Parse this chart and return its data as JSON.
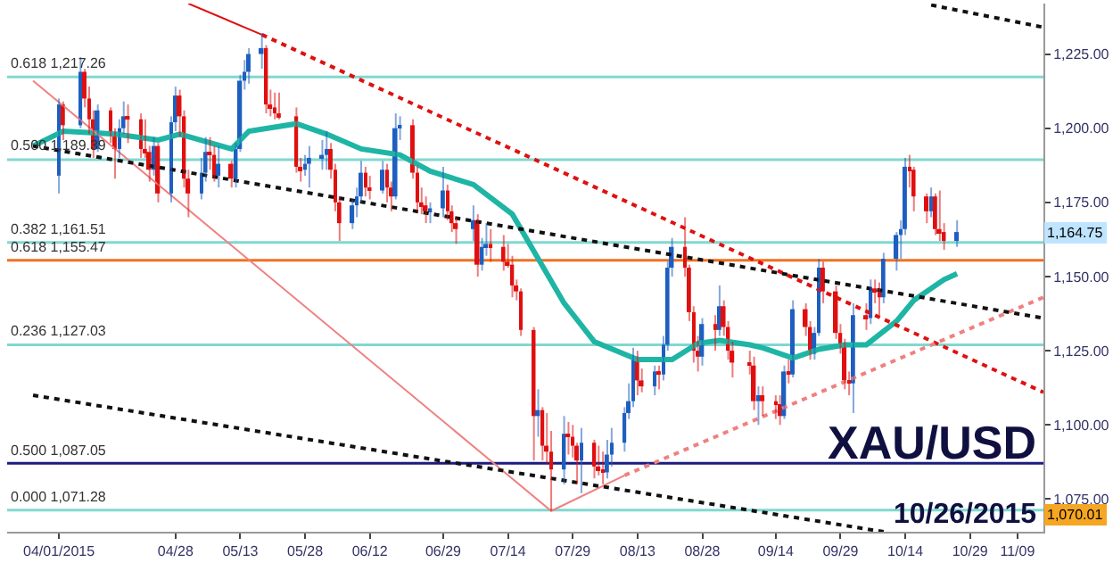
{
  "chart_data": {
    "type": "candlestick",
    "x": [
      "2015-04-01",
      "2015-04-02",
      "2015-04-06",
      "2015-04-07",
      "2015-04-08",
      "2015-04-09",
      "2015-04-10",
      "2015-04-13",
      "2015-04-14",
      "2015-04-15",
      "2015-04-16",
      "2015-04-17",
      "2015-04-20",
      "2015-04-21",
      "2015-04-22",
      "2015-04-23",
      "2015-04-24",
      "2015-04-27",
      "2015-04-28",
      "2015-04-29",
      "2015-04-30",
      "2015-05-01",
      "2015-05-04",
      "2015-05-05",
      "2015-05-06",
      "2015-05-07",
      "2015-05-08",
      "2015-05-11",
      "2015-05-12",
      "2015-05-13",
      "2015-05-14",
      "2015-05-15",
      "2015-05-18",
      "2015-05-19",
      "2015-05-20",
      "2015-05-21",
      "2015-05-22",
      "2015-05-26",
      "2015-05-27",
      "2015-05-28",
      "2015-05-29",
      "2015-06-01",
      "2015-06-02",
      "2015-06-03",
      "2015-06-04",
      "2015-06-05",
      "2015-06-08",
      "2015-06-09",
      "2015-06-10",
      "2015-06-11",
      "2015-06-12",
      "2015-06-15",
      "2015-06-16",
      "2015-06-17",
      "2015-06-18",
      "2015-06-19",
      "2015-06-22",
      "2015-06-23",
      "2015-06-24",
      "2015-06-25",
      "2015-06-26",
      "2015-06-29",
      "2015-06-30",
      "2015-07-01",
      "2015-07-02",
      "2015-07-06",
      "2015-07-07",
      "2015-07-08",
      "2015-07-09",
      "2015-07-10",
      "2015-07-13",
      "2015-07-14",
      "2015-07-15",
      "2015-07-16",
      "2015-07-17",
      "2015-07-20",
      "2015-07-21",
      "2015-07-22",
      "2015-07-23",
      "2015-07-24",
      "2015-07-27",
      "2015-07-28",
      "2015-07-29",
      "2015-07-30",
      "2015-07-31",
      "2015-08-03",
      "2015-08-04",
      "2015-08-05",
      "2015-08-06",
      "2015-08-07",
      "2015-08-10",
      "2015-08-11",
      "2015-08-12",
      "2015-08-13",
      "2015-08-14",
      "2015-08-17",
      "2015-08-18",
      "2015-08-19",
      "2015-08-20",
      "2015-08-21",
      "2015-08-24",
      "2015-08-25",
      "2015-08-26",
      "2015-08-27",
      "2015-08-28",
      "2015-08-31",
      "2015-09-01",
      "2015-09-02",
      "2015-09-03",
      "2015-09-04",
      "2015-09-08",
      "2015-09-09",
      "2015-09-10",
      "2015-09-11",
      "2015-09-14",
      "2015-09-15",
      "2015-09-16",
      "2015-09-17",
      "2015-09-18",
      "2015-09-21",
      "2015-09-22",
      "2015-09-23",
      "2015-09-24",
      "2015-09-25",
      "2015-09-28",
      "2015-09-29",
      "2015-09-30",
      "2015-10-01",
      "2015-10-02",
      "2015-10-05",
      "2015-10-06",
      "2015-10-07",
      "2015-10-08",
      "2015-10-09",
      "2015-10-12",
      "2015-10-13",
      "2015-10-14",
      "2015-10-15",
      "2015-10-16",
      "2015-10-19",
      "2015-10-20",
      "2015-10-21",
      "2015-10-22",
      "2015-10-23",
      "2015-10-26"
    ],
    "ohlc": [
      [
        1184,
        1210,
        1178,
        1208
      ],
      [
        1208,
        1209,
        1196,
        1201
      ],
      [
        1201,
        1224,
        1200,
        1219
      ],
      [
        1219,
        1220,
        1207,
        1210
      ],
      [
        1210,
        1214,
        1198,
        1203
      ],
      [
        1203,
        1206,
        1190,
        1193
      ],
      [
        1193,
        1208,
        1192,
        1206
      ],
      [
        1206,
        1207,
        1195,
        1198
      ],
      [
        1198,
        1200,
        1183,
        1193
      ],
      [
        1193,
        1203,
        1190,
        1200
      ],
      [
        1200,
        1209,
        1198,
        1204
      ],
      [
        1204,
        1208,
        1195,
        1203
      ],
      [
        1203,
        1205,
        1190,
        1193
      ],
      [
        1193,
        1203,
        1190,
        1192
      ],
      [
        1192,
        1194,
        1182,
        1186
      ],
      [
        1186,
        1197,
        1184,
        1194
      ],
      [
        1194,
        1195,
        1175,
        1178
      ],
      [
        1178,
        1204,
        1175,
        1202
      ],
      [
        1202,
        1214,
        1199,
        1211
      ],
      [
        1211,
        1213,
        1197,
        1204
      ],
      [
        1204,
        1206,
        1180,
        1183
      ],
      [
        1183,
        1186,
        1170,
        1178
      ],
      [
        1178,
        1190,
        1176,
        1185
      ],
      [
        1185,
        1197,
        1182,
        1192
      ],
      [
        1192,
        1197,
        1186,
        1191
      ],
      [
        1191,
        1194,
        1182,
        1184
      ],
      [
        1184,
        1194,
        1180,
        1188
      ],
      [
        1188,
        1189,
        1180,
        1183
      ],
      [
        1183,
        1195,
        1180,
        1193
      ],
      [
        1193,
        1218,
        1192,
        1216
      ],
      [
        1216,
        1223,
        1213,
        1219
      ],
      [
        1219,
        1227,
        1215,
        1225
      ],
      [
        1225,
        1232,
        1220,
        1227
      ],
      [
        1227,
        1228,
        1205,
        1208
      ],
      [
        1208,
        1213,
        1204,
        1207
      ],
      [
        1207,
        1212,
        1203,
        1205
      ],
      [
        1205,
        1212,
        1203,
        1204
      ],
      [
        1204,
        1207,
        1185,
        1187
      ],
      [
        1187,
        1190,
        1182,
        1186
      ],
      [
        1186,
        1191,
        1184,
        1188
      ],
      [
        1188,
        1194,
        1180,
        1190
      ],
      [
        1190,
        1196,
        1186,
        1191
      ],
      [
        1191,
        1199,
        1186,
        1193
      ],
      [
        1193,
        1195,
        1183,
        1186
      ],
      [
        1186,
        1188,
        1172,
        1175
      ],
      [
        1175,
        1177,
        1162,
        1168
      ],
      [
        1168,
        1176,
        1166,
        1174
      ],
      [
        1174,
        1180,
        1170,
        1177
      ],
      [
        1177,
        1189,
        1175,
        1185
      ],
      [
        1185,
        1187,
        1177,
        1180
      ],
      [
        1180,
        1184,
        1176,
        1179
      ],
      [
        1179,
        1189,
        1178,
        1186
      ],
      [
        1186,
        1188,
        1175,
        1180
      ],
      [
        1180,
        1182,
        1172,
        1177
      ],
      [
        1177,
        1205,
        1176,
        1200
      ],
      [
        1200,
        1204,
        1196,
        1201
      ],
      [
        1201,
        1203,
        1183,
        1185
      ],
      [
        1185,
        1187,
        1172,
        1175
      ],
      [
        1175,
        1180,
        1171,
        1174
      ],
      [
        1174,
        1177,
        1168,
        1172
      ],
      [
        1172,
        1175,
        1168,
        1173
      ],
      [
        1173,
        1187,
        1170,
        1179
      ],
      [
        1179,
        1181,
        1169,
        1172
      ],
      [
        1172,
        1174,
        1165,
        1168
      ],
      [
        1168,
        1170,
        1161,
        1166
      ],
      [
        1166,
        1174,
        1162,
        1169
      ],
      [
        1169,
        1171,
        1150,
        1154
      ],
      [
        1154,
        1163,
        1152,
        1160
      ],
      [
        1160,
        1168,
        1157,
        1161
      ],
      [
        1161,
        1166,
        1155,
        1160
      ],
      [
        1160,
        1164,
        1152,
        1155
      ],
      [
        1155,
        1161,
        1153,
        1154
      ],
      [
        1154,
        1157,
        1143,
        1147
      ],
      [
        1147,
        1149,
        1142,
        1145
      ],
      [
        1145,
        1146,
        1130,
        1132
      ],
      [
        1132,
        1133,
        1088,
        1103
      ],
      [
        1103,
        1112,
        1096,
        1105
      ],
      [
        1105,
        1106,
        1088,
        1093
      ],
      [
        1093,
        1104,
        1087,
        1091
      ],
      [
        1091,
        1098,
        1071,
        1085
      ],
      [
        1085,
        1103,
        1080,
        1097
      ],
      [
        1097,
        1101,
        1090,
        1096
      ],
      [
        1096,
        1100,
        1089,
        1093
      ],
      [
        1093,
        1094,
        1080,
        1088
      ],
      [
        1088,
        1099,
        1077,
        1094
      ],
      [
        1094,
        1095,
        1082,
        1086
      ],
      [
        1086,
        1093,
        1083,
        1085
      ],
      [
        1085,
        1091,
        1080,
        1084
      ],
      [
        1084,
        1095,
        1082,
        1090
      ],
      [
        1090,
        1099,
        1086,
        1094
      ],
      [
        1094,
        1106,
        1091,
        1104
      ],
      [
        1104,
        1114,
        1102,
        1108
      ],
      [
        1108,
        1126,
        1106,
        1123
      ],
      [
        1123,
        1125,
        1110,
        1115
      ],
      [
        1115,
        1119,
        1111,
        1113
      ],
      [
        1113,
        1120,
        1110,
        1118
      ],
      [
        1118,
        1120,
        1112,
        1117
      ],
      [
        1117,
        1130,
        1115,
        1127
      ],
      [
        1127,
        1155,
        1125,
        1153
      ],
      [
        1153,
        1163,
        1150,
        1160
      ],
      [
        1160,
        1170,
        1150,
        1153
      ],
      [
        1153,
        1154,
        1135,
        1138
      ],
      [
        1138,
        1140,
        1121,
        1125
      ],
      [
        1125,
        1130,
        1118,
        1123
      ],
      [
        1123,
        1136,
        1120,
        1134
      ],
      [
        1134,
        1137,
        1125,
        1132
      ],
      [
        1132,
        1147,
        1130,
        1140
      ],
      [
        1140,
        1142,
        1130,
        1133
      ],
      [
        1133,
        1135,
        1122,
        1125
      ],
      [
        1125,
        1128,
        1116,
        1121
      ],
      [
        1121,
        1125,
        1117,
        1120
      ],
      [
        1120,
        1123,
        1105,
        1108
      ],
      [
        1108,
        1113,
        1100,
        1110
      ],
      [
        1110,
        1113,
        1103,
        1108
      ],
      [
        1108,
        1110,
        1102,
        1107
      ],
      [
        1107,
        1110,
        1100,
        1103
      ],
      [
        1103,
        1120,
        1102,
        1118
      ],
      [
        1118,
        1122,
        1114,
        1117
      ],
      [
        1117,
        1142,
        1116,
        1139
      ],
      [
        1139,
        1141,
        1130,
        1133
      ],
      [
        1133,
        1135,
        1122,
        1124
      ],
      [
        1124,
        1133,
        1122,
        1131
      ],
      [
        1131,
        1156,
        1130,
        1153
      ],
      [
        1153,
        1155,
        1141,
        1145
      ],
      [
        1145,
        1147,
        1129,
        1131
      ],
      [
        1131,
        1134,
        1124,
        1127
      ],
      [
        1127,
        1129,
        1112,
        1115
      ],
      [
        1115,
        1118,
        1110,
        1114
      ],
      [
        1114,
        1141,
        1104,
        1137
      ],
      [
        1137,
        1141,
        1132,
        1136
      ],
      [
        1136,
        1149,
        1134,
        1146
      ],
      [
        1146,
        1149,
        1141,
        1145
      ],
      [
        1145,
        1148,
        1137,
        1143
      ],
      [
        1143,
        1158,
        1141,
        1156
      ],
      [
        1156,
        1165,
        1152,
        1164
      ],
      [
        1164,
        1169,
        1156,
        1166
      ],
      [
        1166,
        1190,
        1164,
        1187
      ],
      [
        1187,
        1191,
        1180,
        1186
      ],
      [
        1186,
        1187,
        1172,
        1177
      ],
      [
        1177,
        1178,
        1168,
        1172
      ],
      [
        1172,
        1180,
        1170,
        1177
      ],
      [
        1177,
        1178,
        1164,
        1166
      ],
      [
        1166,
        1179,
        1162,
        1165
      ],
      [
        1165,
        1168,
        1159,
        1162
      ],
      [
        1162,
        1169,
        1160,
        1165
      ]
    ],
    "colors": [
      "#1e5fc0",
      "#e01010",
      "#1e5fc0",
      "#e01010",
      "#e01010",
      "#e01010",
      "#1e5fc0",
      "#e01010",
      "#e01010",
      "#1e5fc0",
      "#1e5fc0",
      "#e01010",
      "#e01010",
      "#e01010",
      "#e01010",
      "#1e5fc0",
      "#e01010",
      "#1e5fc0",
      "#1e5fc0",
      "#e01010",
      "#e01010",
      "#e01010",
      "#1e5fc0",
      "#1e5fc0",
      "#e01010",
      "#e01010",
      "#1e5fc0",
      "#e01010",
      "#1e5fc0",
      "#1e5fc0",
      "#1e5fc0",
      "#1e5fc0",
      "#1e5fc0",
      "#e01010",
      "#e01010",
      "#e01010",
      "#e01010",
      "#e01010",
      "#e01010",
      "#1e5fc0",
      "#1e5fc0",
      "#1e5fc0",
      "#1e5fc0",
      "#e01010",
      "#e01010",
      "#e01010",
      "#1e5fc0",
      "#1e5fc0",
      "#1e5fc0",
      "#e01010",
      "#e01010",
      "#1e5fc0",
      "#e01010",
      "#e01010",
      "#1e5fc0",
      "#1e5fc0",
      "#e01010",
      "#e01010",
      "#e01010",
      "#e01010",
      "#1e5fc0",
      "#1e5fc0",
      "#e01010",
      "#e01010",
      "#e01010",
      "#1e5fc0",
      "#e01010",
      "#1e5fc0",
      "#1e5fc0",
      "#e01010",
      "#e01010",
      "#e01010",
      "#e01010",
      "#e01010",
      "#e01010",
      "#e01010",
      "#1e5fc0",
      "#e01010",
      "#e01010",
      "#e01010",
      "#1e5fc0",
      "#e01010",
      "#e01010",
      "#e01010",
      "#1e5fc0",
      "#e01010",
      "#e01010",
      "#e01010",
      "#1e5fc0",
      "#1e5fc0",
      "#1e5fc0",
      "#1e5fc0",
      "#1e5fc0",
      "#e01010",
      "#e01010",
      "#1e5fc0",
      "#e01010",
      "#1e5fc0",
      "#1e5fc0",
      "#1e5fc0",
      "#e01010",
      "#e01010",
      "#e01010",
      "#e01010",
      "#1e5fc0",
      "#e01010",
      "#1e5fc0",
      "#e01010",
      "#e01010",
      "#e01010",
      "#e01010",
      "#e01010",
      "#1e5fc0",
      "#e01010",
      "#e01010",
      "#e01010",
      "#1e5fc0",
      "#e01010",
      "#1e5fc0",
      "#e01010",
      "#e01010",
      "#1e5fc0",
      "#1e5fc0",
      "#e01010",
      "#e01010",
      "#e01010",
      "#e01010",
      "#e01010",
      "#1e5fc0",
      "#e01010",
      "#1e5fc0",
      "#e01010",
      "#e01010",
      "#1e5fc0",
      "#1e5fc0",
      "#1e5fc0",
      "#1e5fc0",
      "#e01010",
      "#e01010",
      "#e01010",
      "#1e5fc0",
      "#e01010",
      "#e01010",
      "#e01010",
      "#1e5fc0"
    ],
    "series": [
      {
        "type": "line",
        "color": "#1fb5a5",
        "line_style": "solid",
        "x": [
          "2015-03-26",
          "2015-04-02",
          "2015-04-14",
          "2015-04-24",
          "2015-04-29",
          "2015-05-11",
          "2015-05-15",
          "2015-05-26",
          "2015-06-02",
          "2015-06-10",
          "2015-06-19",
          "2015-06-26",
          "2015-07-06",
          "2015-07-15",
          "2015-07-21",
          "2015-07-27",
          "2015-08-03",
          "2015-08-13",
          "2015-08-21",
          "2015-08-27",
          "2015-09-01",
          "2015-09-08",
          "2015-09-11",
          "2015-09-18",
          "2015-09-24",
          "2015-09-30",
          "2015-10-05",
          "2015-10-12",
          "2015-10-16",
          "2015-10-23",
          "2015-10-26"
        ],
        "values": [
          1194,
          1199,
          1198,
          1196,
          1198,
          1193,
          1199,
          1201.5,
          1198,
          1193,
          1191,
          1185.5,
          1181,
          1171,
          1156,
          1141,
          1128,
          1122,
          1122,
          1127.5,
          1128.5,
          1127,
          1126,
          1122.5,
          1125.5,
          1127,
          1127,
          1135,
          1142,
          1149,
          1151
        ]
      },
      {
        "type": "line",
        "color": "#e01010",
        "line_style": "solid",
        "x": [
          "2015-05-01",
          "2015-05-18"
        ],
        "values": [
          1242,
          1231.5
        ]
      },
      {
        "type": "line",
        "color": "#e01010",
        "line_style": "dotted",
        "x": [
          "2015-05-18",
          "2015-11-15"
        ],
        "values": [
          1231.5,
          1111
        ]
      },
      {
        "type": "line",
        "color": "#f08080",
        "line_style": "solid",
        "x": [
          "2015-03-26",
          "2015-07-24",
          "2015-08-10"
        ],
        "values": [
          1216,
          1071,
          1083
        ]
      },
      {
        "type": "line",
        "color": "#f08080",
        "line_style": "dotted",
        "x": [
          "2015-08-10",
          "2015-11-15"
        ],
        "values": [
          1083,
          1143
        ]
      },
      {
        "type": "line",
        "color": "#111111",
        "line_style": "dotted",
        "x": [
          "2015-03-26",
          "2015-11-15"
        ],
        "values": [
          1194,
          1136
        ]
      },
      {
        "type": "line",
        "color": "#111111",
        "line_style": "dotted",
        "x": [
          "2015-03-26",
          "2015-10-09"
        ],
        "values": [
          1110,
          1064
        ]
      },
      {
        "type": "line",
        "color": "#111111",
        "line_style": "dotted",
        "x": [
          "2015-10-20",
          "2015-11-15"
        ],
        "values": [
          1241.5,
          1234
        ]
      }
    ],
    "ref_lines": [
      {
        "axis": "y",
        "value": 1217.26,
        "label": "0.618 1,217.26",
        "color": "#80d8d0"
      },
      {
        "axis": "y",
        "value": 1189.39,
        "label": "0.500 1,189.39",
        "color": "#80d8d0"
      },
      {
        "axis": "y",
        "value": 1161.51,
        "label": "0.382 1,161.51",
        "color": "#80d8d0"
      },
      {
        "axis": "y",
        "value": 1155.47,
        "label": "0.618 1,155.47",
        "color": "#f07020"
      },
      {
        "axis": "y",
        "value": 1127.03,
        "label": "0.236 1,127.03",
        "color": "#80d8d0"
      },
      {
        "axis": "y",
        "value": 1087.05,
        "label": "0.500 1,087.05",
        "color": "#1c1c80"
      },
      {
        "axis": "y",
        "value": 1071.28,
        "label": "0.000 1,071.28",
        "color": "#80d8d0"
      }
    ],
    "annotations": [
      "XAU/USD",
      "10/26/2015",
      {
        "text": "1,164.75",
        "y": 1164.75
      },
      {
        "text": "1,070.01",
        "y": 1070.01
      }
    ],
    "xlim": [
      "2015-03-20",
      "2015-11-15"
    ],
    "xticks": [
      {
        "value": "2015-04-01",
        "label": "04/01/2015"
      },
      {
        "value": "2015-04-28",
        "label": "04/28"
      },
      {
        "value": "2015-05-13",
        "label": "05/13"
      },
      {
        "value": "2015-05-28",
        "label": "05/28"
      },
      {
        "value": "2015-06-12",
        "label": "06/12"
      },
      {
        "value": "2015-06-29",
        "label": "06/29"
      },
      {
        "value": "2015-07-14",
        "label": "07/14"
      },
      {
        "value": "2015-07-29",
        "label": "07/29"
      },
      {
        "value": "2015-08-13",
        "label": "08/13"
      },
      {
        "value": "2015-08-28",
        "label": "08/28"
      },
      {
        "value": "2015-09-14",
        "label": "09/14"
      },
      {
        "value": "2015-09-29",
        "label": "09/29"
      },
      {
        "value": "2015-10-14",
        "label": "10/14"
      },
      {
        "value": "2015-10-29",
        "label": "10/29"
      },
      {
        "value": "2015-11-09",
        "label": "11/09"
      }
    ],
    "ylim": [
      1064,
      1242
    ],
    "yticks": [
      {
        "value": 1075,
        "label": "1,075.00"
      },
      {
        "value": 1100,
        "label": "1,100.00"
      },
      {
        "value": 1125,
        "label": "1,125.00"
      },
      {
        "value": 1150,
        "label": "1,150.00"
      },
      {
        "value": 1175,
        "label": "1,175.00"
      },
      {
        "value": 1200,
        "label": "1,200.00"
      },
      {
        "value": 1225,
        "label": "1,225.00"
      }
    ],
    "grid": false
  }
}
